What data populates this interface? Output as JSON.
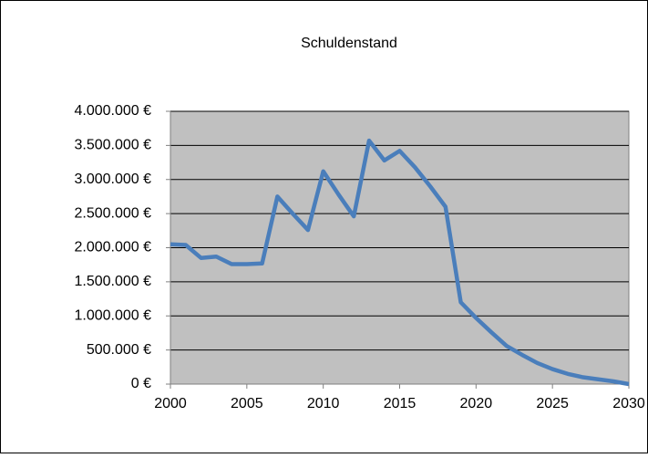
{
  "chart_data": {
    "type": "line",
    "title": "Schuldenstand",
    "x": [
      2000,
      2001,
      2002,
      2003,
      2004,
      2005,
      2006,
      2007,
      2008,
      2009,
      2010,
      2011,
      2012,
      2013,
      2014,
      2015,
      2016,
      2017,
      2018,
      2019,
      2020,
      2021,
      2022,
      2023,
      2024,
      2025,
      2026,
      2027,
      2028,
      2029,
      2030
    ],
    "series": [
      {
        "name": "Schuldenstand",
        "color": "#4a7ebb",
        "values": [
          2050000,
          2040000,
          1850000,
          1870000,
          1760000,
          1760000,
          1770000,
          2750000,
          2500000,
          2260000,
          3120000,
          2780000,
          2460000,
          3570000,
          3280000,
          3420000,
          3180000,
          2900000,
          2600000,
          1200000,
          970000,
          760000,
          560000,
          430000,
          310000,
          220000,
          150000,
          100000,
          70000,
          40000,
          0
        ]
      }
    ],
    "xlim": [
      2000,
      2030
    ],
    "xticks": [
      2000,
      2005,
      2010,
      2015,
      2020,
      2025,
      2030
    ],
    "ylim": [
      0,
      4000000
    ],
    "yticks": [
      {
        "value": 0,
        "label": "0 €"
      },
      {
        "value": 500000,
        "label": "500.000 €"
      },
      {
        "value": 1000000,
        "label": "1.000.000 €"
      },
      {
        "value": 1500000,
        "label": "1.500.000 €"
      },
      {
        "value": 2000000,
        "label": "2.000.000 €"
      },
      {
        "value": 2500000,
        "label": "2.500.000 €"
      },
      {
        "value": 3000000,
        "label": "3.000.000 €"
      },
      {
        "value": 3500000,
        "label": "3.500.000 €"
      },
      {
        "value": 4000000,
        "label": "4.000.000 €"
      }
    ],
    "grid": true,
    "plot_background": "#c0c0c0"
  }
}
